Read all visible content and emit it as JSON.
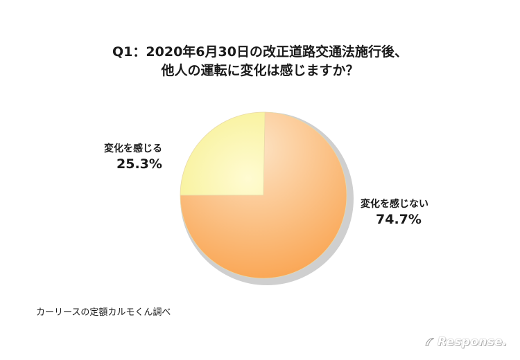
{
  "title": {
    "line1": "Q1：2020年6月30日の改正道路交通法施行後、",
    "line2": "他人の運転に変化は感じますか？"
  },
  "chart_data": {
    "type": "pie",
    "title": "Q1：2020年6月30日の改正道路交通法施行後、他人の運転に変化は感じますか？",
    "slices": [
      {
        "label": "変化を感じる",
        "value": 25.3,
        "value_label": "25.3%",
        "color": "#fbf7b4"
      },
      {
        "label": "変化を感じない",
        "value": 74.7,
        "value_label": "74.7%",
        "color": "#fbba78"
      }
    ],
    "legend": "none"
  },
  "source": "カーリースの定額カルモくん調べ",
  "watermark": {
    "text": "Response.",
    "icon": "response-logo-icon"
  }
}
